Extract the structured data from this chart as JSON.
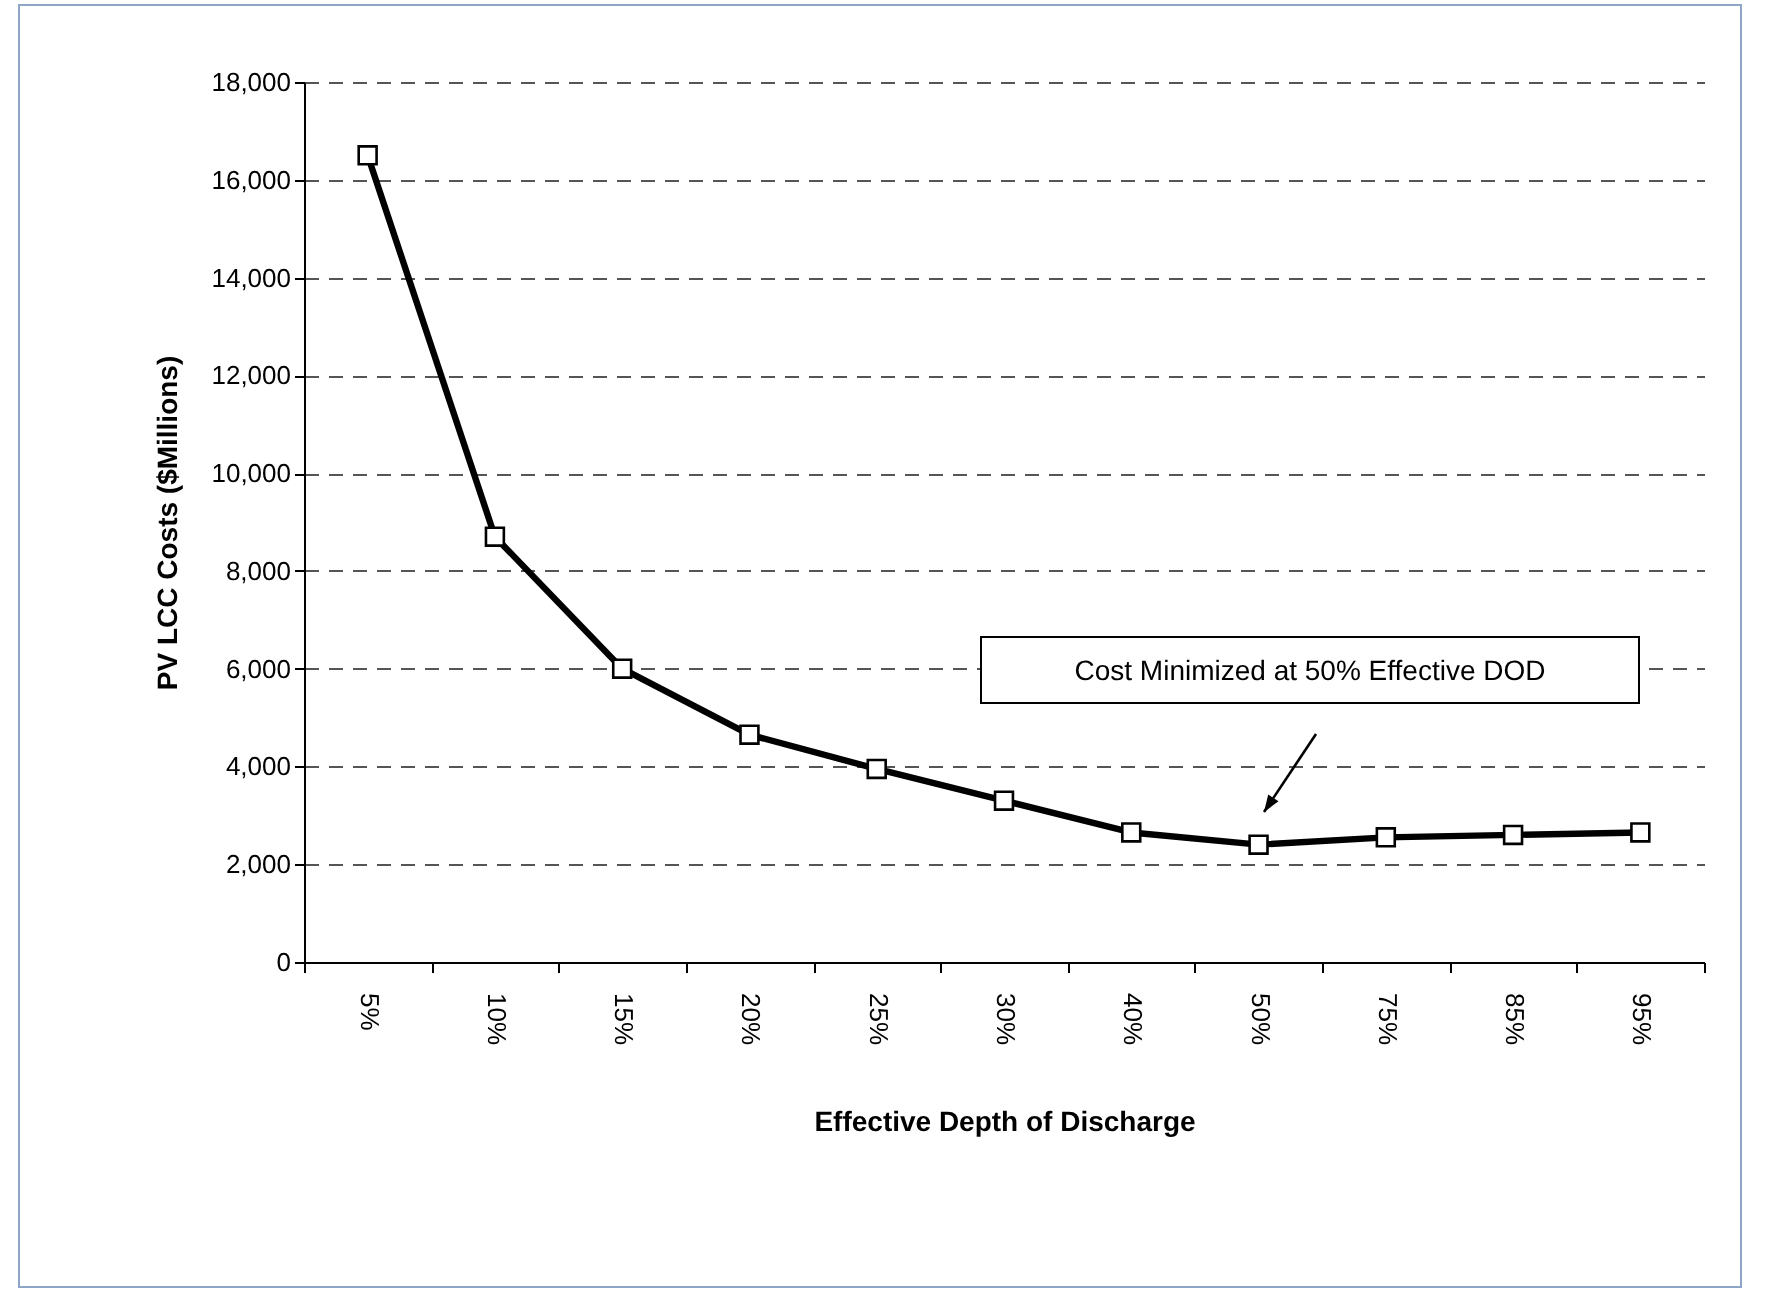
{
  "chart_data": {
    "type": "line",
    "xlabel": "Effective Depth of Discharge",
    "ylabel": "PV LCC Costs ($Millions)",
    "categories": [
      "5%",
      "10%",
      "15%",
      "20%",
      "25%",
      "30%",
      "40%",
      "50%",
      "75%",
      "85%",
      "95%"
    ],
    "series": [
      {
        "color": "#000000",
        "values": [
          16500,
          8700,
          6000,
          4650,
          3950,
          3300,
          2650,
          2400,
          2550,
          2600,
          2650
        ]
      }
    ],
    "ylim": [
      0,
      18000
    ],
    "yticks": [
      {
        "value": 0,
        "label": "0"
      },
      {
        "value": 2000,
        "label": "2,000"
      },
      {
        "value": 4000,
        "label": "4,000"
      },
      {
        "value": 6000,
        "label": "6,000"
      },
      {
        "value": 8000,
        "label": "8,000"
      },
      {
        "value": 10000,
        "label": "10,000"
      },
      {
        "value": 12000,
        "label": "12,000"
      },
      {
        "value": 14000,
        "label": "14,000"
      },
      {
        "value": 16000,
        "label": "16,000"
      },
      {
        "value": 18000,
        "label": "18,000"
      }
    ],
    "grid": "y",
    "marker": "square",
    "line_style": "solid",
    "annotations": [
      "Cost Minimized at 50% Effective DOD"
    ]
  }
}
